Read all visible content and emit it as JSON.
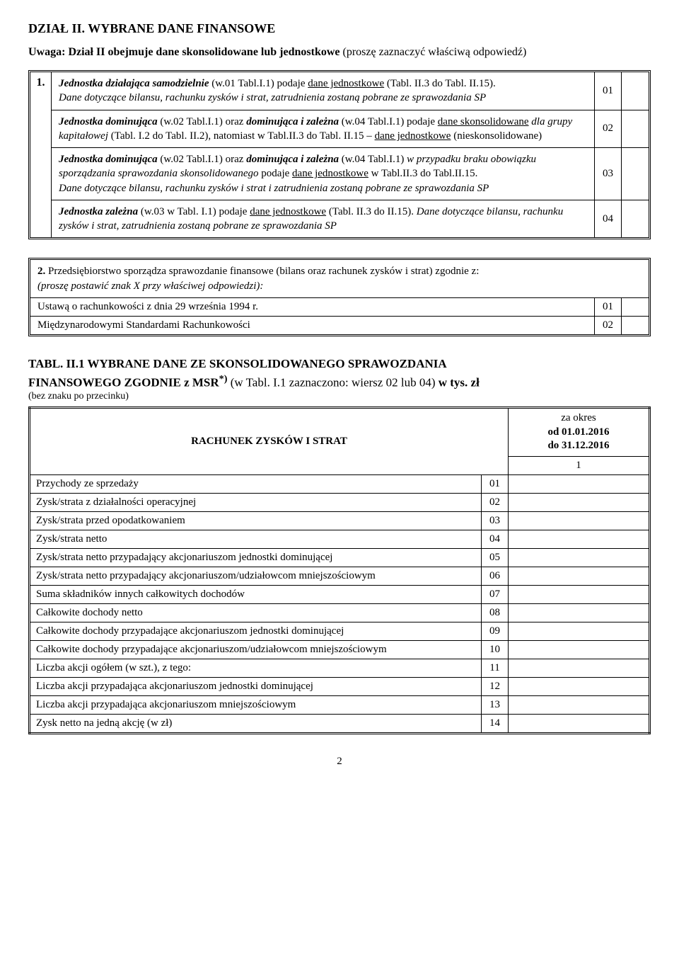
{
  "header": {
    "section_title": "DZIAŁ II.  WYBRANE DANE FINANSOWE",
    "note_bold": "Uwaga: Dział II obejmuje dane skonsolidowane lub jednostkowe",
    "note_rest": " (proszę zaznaczyć właściwą odpowiedź)"
  },
  "block1": {
    "left_number": "1.",
    "rows": [
      {
        "html": "<span class='b i'>Jednostka działająca samodzielnie</span> (w.01 Tabl.I.1) podaje <span class='u'>dane jednostkowe</span> (Tabl. II.3 do Tabl. II.15).<br><span class='i'>Dane dotyczące bilansu, rachunku zysków i strat, zatrudnienia zostaną pobrane ze sprawozdania  SP</span>",
        "code": "01"
      },
      {
        "html": "<span class='b i'>Jednostka dominująca</span> (w.02 Tabl.I.1) oraz <span class='b i'>dominująca i zależna</span> (w.04 Tabl.I.1) podaje <span class='u'>dane skonsolidowane</span> <span class='i'>dla grupy kapitałowej</span> (Tabl. I.2 do Tabl. II.2), natomiast w Tabl.II.3 do Tabl. II.15 – <span class='u'>dane jednostkowe</span> (nieskonsolidowane)",
        "code": "02"
      },
      {
        "html": "<span class='b i'>Jednostka dominująca</span> (w.02 Tabl.I.1) oraz <span class='b i'>dominująca i zależna</span> (w.04 Tabl.I.1) <span class='i'>w przypadku braku obowiązku sporządzania sprawozdania skonsolidowanego</span> podaje <span class='u'>dane jednostkowe</span>  w Tabl.II.3 do Tabl.II.15.<br><span class='i'>Dane dotyczące bilansu, rachunku zysków i strat i zatrudnienia zostaną pobrane ze sprawozdania SP</span>",
        "code": "03"
      },
      {
        "html": "<span class='b i'>Jednostka zależna</span> (w.03 w Tabl. I.1) podaje <span class='u'>dane jednostkowe</span>  (Tabl. II.3 do II.15). <span class='i'>Dane dotyczące bilansu, rachunku zysków i strat, zatrudnienia zostaną pobrane ze sprawozdania SP</span>",
        "code": "04"
      }
    ]
  },
  "block2": {
    "head_bold": "2.",
    "head_text": " Przedsiębiorstwo sporządza sprawozdanie finansowe (bilans oraz rachunek zysków i strat) zgodnie z:",
    "head_sub": "(proszę postawić  znak X przy właściwej odpowiedzi):",
    "rows": [
      {
        "label": "Ustawą o rachunkowości z dnia 29 września 1994 r.",
        "code": "01"
      },
      {
        "label": "Międzynarodowymi Standardami Rachunkowości",
        "code": "02"
      }
    ]
  },
  "table": {
    "title_line1": "TABL. II.1 WYBRANE DANE ZE SKONSOLIDOWANEGO SPRAWOZDANIA",
    "title_line2_bold": "FINANSOWEGO ZGODNIE z MSR",
    "title_sup": "*)",
    "title_line2_rest": " (w Tabl. I.1 zaznaczono: wiersz 02 lub 04) ",
    "title_units": "w tys. zł",
    "subnote": "(bez znaku po przecinku)",
    "rach_header": "RACHUNEK ZYSKÓW I STRAT",
    "period_label": "za okres",
    "period_from": "od 01.01.2016",
    "period_to": "do 31.12.2016",
    "col1_label": "1",
    "rows": [
      {
        "label": "Przychody ze sprzedaży",
        "code": "01",
        "indent": false
      },
      {
        "label": "Zysk/strata z działalności operacyjnej",
        "code": "02",
        "indent": false
      },
      {
        "label": "Zysk/strata przed opodatkowaniem",
        "code": "03",
        "indent": false
      },
      {
        "label": "Zysk/strata netto",
        "code": "04",
        "indent": false
      },
      {
        "label": "Zysk/strata netto przypadający akcjonariuszom jednostki dominującej",
        "code": "05",
        "indent": false
      },
      {
        "label": "Zysk/strata netto przypadający akcjonariuszom/udziałowcom mniejszościowym",
        "code": "06",
        "indent": false
      },
      {
        "label": "Suma składników innych całkowitych dochodów",
        "code": "07",
        "indent": false
      },
      {
        "label": "Całkowite dochody netto",
        "code": "08",
        "indent": false
      },
      {
        "label": "Całkowite dochody przypadające akcjonariuszom jednostki dominującej",
        "code": "09",
        "indent": false
      },
      {
        "label": "Całkowite dochody przypadające akcjonariuszom/udziałowcom mniejszościowym",
        "code": "10",
        "indent": false
      },
      {
        "label": "Liczba akcji ogółem (w szt.), z tego:",
        "code": "11",
        "indent": false
      },
      {
        "label": "Liczba akcji przypadająca akcjonariuszom jednostki dominującej",
        "code": "12",
        "indent": true
      },
      {
        "label": "Liczba akcji przypadająca akcjonariuszom mniejszościowym",
        "code": "13",
        "indent": true
      },
      {
        "label": "Zysk netto na jedną akcję (w zł)",
        "code": "14",
        "indent": false
      }
    ]
  },
  "footer": {
    "page": "2"
  }
}
